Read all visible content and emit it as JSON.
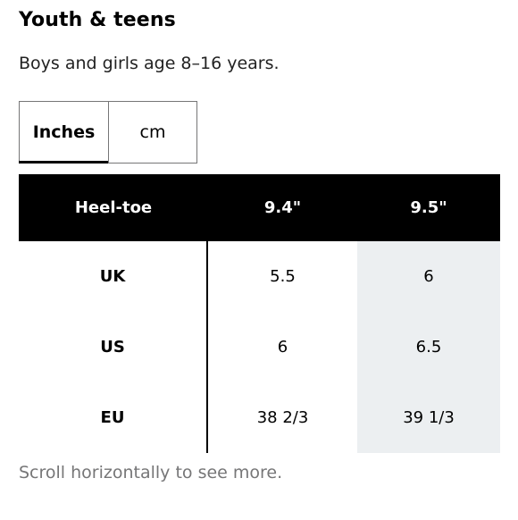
{
  "title": "Youth & teens",
  "subtitle": "Boys and girls age 8–16 years.",
  "unit_toggle": {
    "options": [
      "Inches",
      "cm"
    ],
    "selected": "Inches"
  },
  "table": {
    "header": [
      "Heel-toe",
      "9.4\"",
      "9.5\""
    ],
    "rows": [
      [
        "UK",
        "5.5",
        "6"
      ],
      [
        "US",
        "6",
        "6.5"
      ],
      [
        "EU",
        "38 2/3",
        "39 1/3"
      ]
    ],
    "highlighted_column": 2
  },
  "scroll_hint": "Scroll horizontally to see more.",
  "colors": {
    "header_bg": "#000000",
    "header_text": "#ffffff",
    "highlight_column_bg": "#eceff1",
    "hint_text": "#767677"
  }
}
